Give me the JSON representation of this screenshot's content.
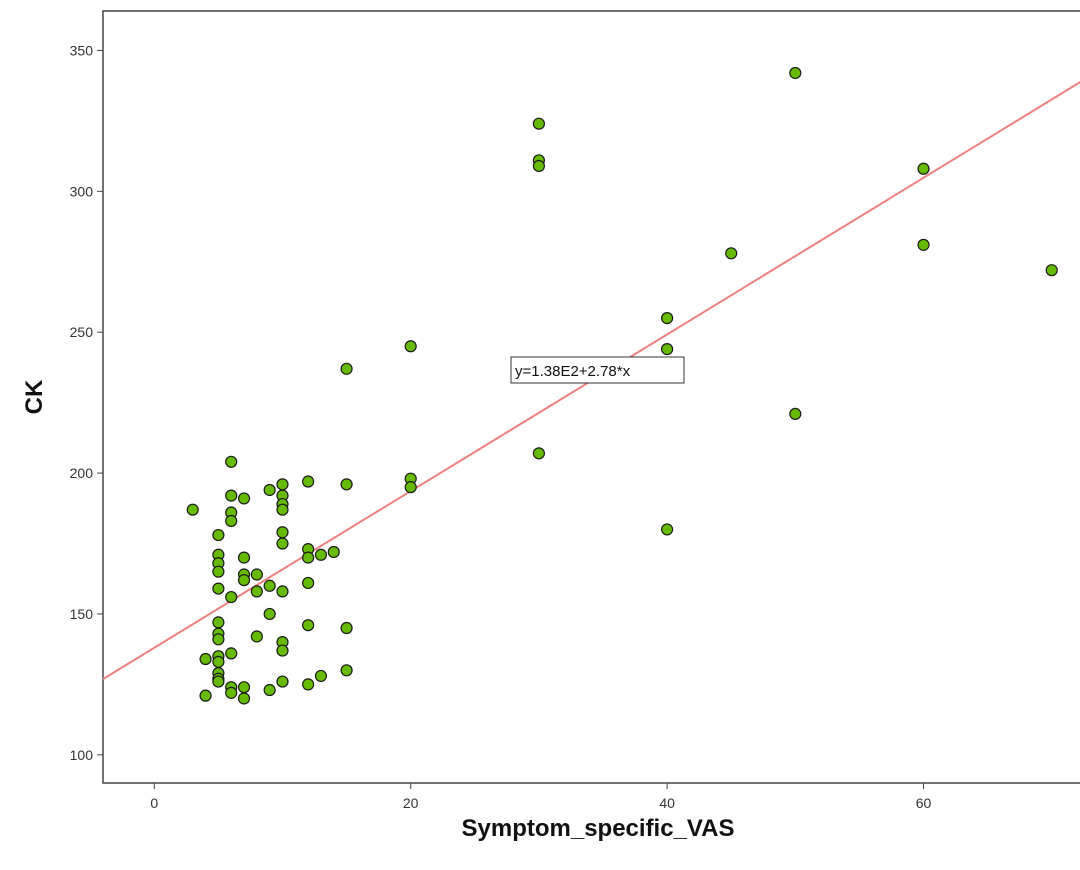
{
  "chart_data": {
    "type": "scatter",
    "xlabel": "Symptom_specific_VAS",
    "ylabel": "CK",
    "xlim": [
      -4,
      74
    ],
    "ylim": [
      90,
      364
    ],
    "xticks": [
      0,
      20,
      40,
      60
    ],
    "yticks": [
      100,
      150,
      200,
      250,
      300,
      350
    ],
    "grid": false,
    "fit_line": {
      "intercept": 138,
      "slope": 2.78,
      "label": "y=1.38E2+2.78*x",
      "color": "#f08080"
    },
    "marker_color": "#66bb00",
    "points": [
      [
        3,
        187
      ],
      [
        4,
        134
      ],
      [
        4,
        121
      ],
      [
        5,
        178
      ],
      [
        5,
        171
      ],
      [
        5,
        168
      ],
      [
        5,
        165
      ],
      [
        5,
        159
      ],
      [
        5,
        147
      ],
      [
        5,
        143
      ],
      [
        5,
        141
      ],
      [
        5,
        135
      ],
      [
        5,
        133
      ],
      [
        5,
        129
      ],
      [
        5,
        127
      ],
      [
        5,
        126
      ],
      [
        6,
        204
      ],
      [
        6,
        192
      ],
      [
        6,
        186
      ],
      [
        6,
        183
      ],
      [
        6,
        156
      ],
      [
        6,
        136
      ],
      [
        6,
        124
      ],
      [
        6,
        122
      ],
      [
        7,
        191
      ],
      [
        7,
        170
      ],
      [
        7,
        164
      ],
      [
        7,
        162
      ],
      [
        7,
        124
      ],
      [
        7,
        120
      ],
      [
        8,
        164
      ],
      [
        8,
        158
      ],
      [
        8,
        142
      ],
      [
        9,
        194
      ],
      [
        9,
        160
      ],
      [
        9,
        150
      ],
      [
        9,
        123
      ],
      [
        10,
        196
      ],
      [
        10,
        192
      ],
      [
        10,
        189
      ],
      [
        10,
        187
      ],
      [
        10,
        179
      ],
      [
        10,
        175
      ],
      [
        10,
        158
      ],
      [
        10,
        140
      ],
      [
        10,
        137
      ],
      [
        10,
        126
      ],
      [
        12,
        197
      ],
      [
        12,
        173
      ],
      [
        12,
        170
      ],
      [
        12,
        161
      ],
      [
        12,
        146
      ],
      [
        12,
        125
      ],
      [
        13,
        171
      ],
      [
        13,
        128
      ],
      [
        14,
        172
      ],
      [
        15,
        237
      ],
      [
        15,
        196
      ],
      [
        15,
        145
      ],
      [
        15,
        130
      ],
      [
        20,
        245
      ],
      [
        20,
        198
      ],
      [
        20,
        195
      ],
      [
        30,
        324
      ],
      [
        30,
        311
      ],
      [
        30,
        309
      ],
      [
        30,
        207
      ],
      [
        40,
        255
      ],
      [
        40,
        244
      ],
      [
        40,
        180
      ],
      [
        45,
        278
      ],
      [
        50,
        342
      ],
      [
        50,
        221
      ],
      [
        60,
        308
      ],
      [
        60,
        281
      ],
      [
        70,
        272
      ]
    ]
  }
}
